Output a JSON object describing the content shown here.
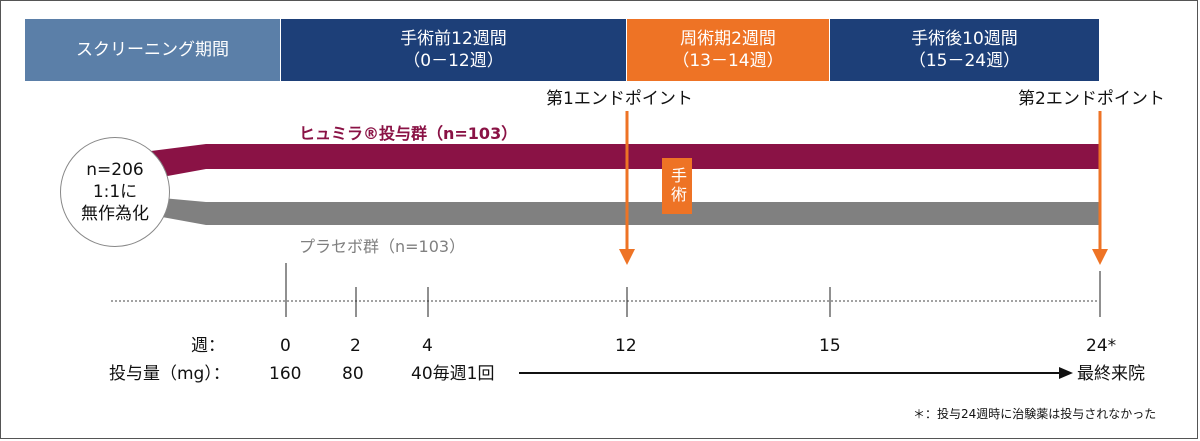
{
  "phases": [
    {
      "label": "スクリーニング期間",
      "sub": "",
      "color": "#5b7fa8"
    },
    {
      "label": "手術前12週間",
      "sub": "（0－12週）",
      "color": "#1d3f78"
    },
    {
      "label": "周術期2週間",
      "sub": "（13－14週）",
      "color": "#ee7325"
    },
    {
      "label": "手術後10週間",
      "sub": "（15－24週）",
      "color": "#1d3f78"
    }
  ],
  "endpoints": {
    "first": "第1エンドポイント",
    "second": "第2エンドポイント"
  },
  "randomization": {
    "line1": "n=206",
    "line2": "1:1に",
    "line3": "無作為化"
  },
  "arms": {
    "treatment": {
      "label": "ヒュミラ®投与群（n=103）",
      "color": "#8a1245"
    },
    "placebo": {
      "label": "プラセボ群（n=103）",
      "color": "#808080"
    }
  },
  "surgery_label": "手術",
  "accent_color": "#ee7325",
  "timeline": {
    "week_label": "週：",
    "dose_label": "投与量（mg）：",
    "weeks": [
      "0",
      "2",
      "4",
      "12",
      "15",
      "24*"
    ],
    "doses": [
      "160",
      "80",
      "40毎週1回"
    ],
    "final_visit": "最終来院"
  },
  "footnote": "＊：投与24週時に治験薬は投与されなかった"
}
